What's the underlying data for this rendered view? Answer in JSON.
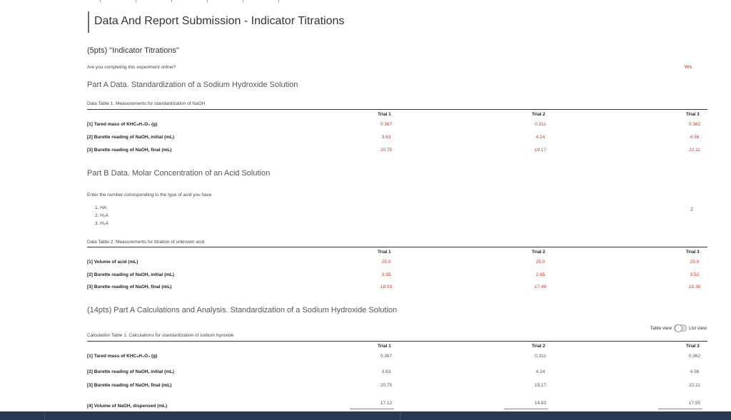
{
  "page": {
    "title": "Data And Report Submission - Indicator Titrations"
  },
  "section1": {
    "heading": "(5pts) \"Indicator Titrations\"",
    "online_question": "Are you completing this experiment online?",
    "online_answer": "Yes"
  },
  "partA": {
    "heading": "Part A Data. Standardization of a Sodium Hydroxide Solution",
    "table_caption": "Data Table 1. Measurements for standardization of NaOH",
    "columns": [
      "Trial 1",
      "Trial 2",
      "Trial 3"
    ],
    "rows": [
      {
        "label": "[1] Tared mass of KHC₈H₄O₄ (g)",
        "values": [
          "0.367",
          "0.311",
          "0.362"
        ]
      },
      {
        "label": "[2] Burette reading of NaOH, initial (mL)",
        "values": [
          "3.63",
          "4.24",
          "4.56"
        ]
      },
      {
        "label": "[3] Burette reading of NaOH, final (mL)",
        "values": [
          "20.75",
          "19.17",
          "22.11"
        ]
      }
    ]
  },
  "partB": {
    "heading": "Part B Data. Molar Concentration of an Acid Solution",
    "acid_prompt": "Enter the number corresponding to the type of acid you have",
    "acid_options": [
      "1. HA",
      "2. H₂A",
      "3. H₃A"
    ],
    "acid_answer": "2",
    "table_caption": "Data Table 2. Measurements for titration of unknown acid",
    "columns": [
      "Trial 1",
      "Trial 2",
      "Trial 3"
    ],
    "rows": [
      {
        "label": "[1] Volume of acid (mL)",
        "values": [
          "25.0",
          "25.0",
          "25.0"
        ]
      },
      {
        "label": "[2] Burette reading of NaOH, initial (mL)",
        "values": [
          "3.35",
          "2.65",
          "3.52"
        ]
      },
      {
        "label": "[3] Burette reading of NaOH, final (mL)",
        "values": [
          "18.03",
          "17.49",
          "18.38"
        ]
      }
    ]
  },
  "calcA": {
    "heading": "(14pts) Part A Calculations and Analysis. Standardization of a Sodium Hydroxide Solution",
    "toggle_left": "Table view",
    "toggle_right": "List view",
    "table_caption": "Calculation Table 1. Calculations for standardization of sodium hyroxide",
    "columns": [
      "Trial 1",
      "Trial 2",
      "Trial 3"
    ],
    "rows": [
      {
        "label": "[1] Tared mass of KHC₈H₄O₄ (g)",
        "values": [
          "0.367",
          "0.311",
          "0.362"
        ]
      },
      {
        "label": "[2] Burette reading of NaOH, initial (mL)",
        "values": [
          "3.63",
          "4.24",
          "4.56"
        ]
      },
      {
        "label": "[3] Burette reading of NaOH, final (mL)",
        "values": [
          "20.75",
          "19.17",
          "22.11"
        ]
      },
      {
        "label": "[4] Volume of NaOH, dispensed (mL)",
        "values": [
          "17.12",
          "14.93",
          "17.55"
        ]
      }
    ]
  },
  "colors": {
    "answer": "#c0392b",
    "bottom_bar": "#273a52"
  }
}
